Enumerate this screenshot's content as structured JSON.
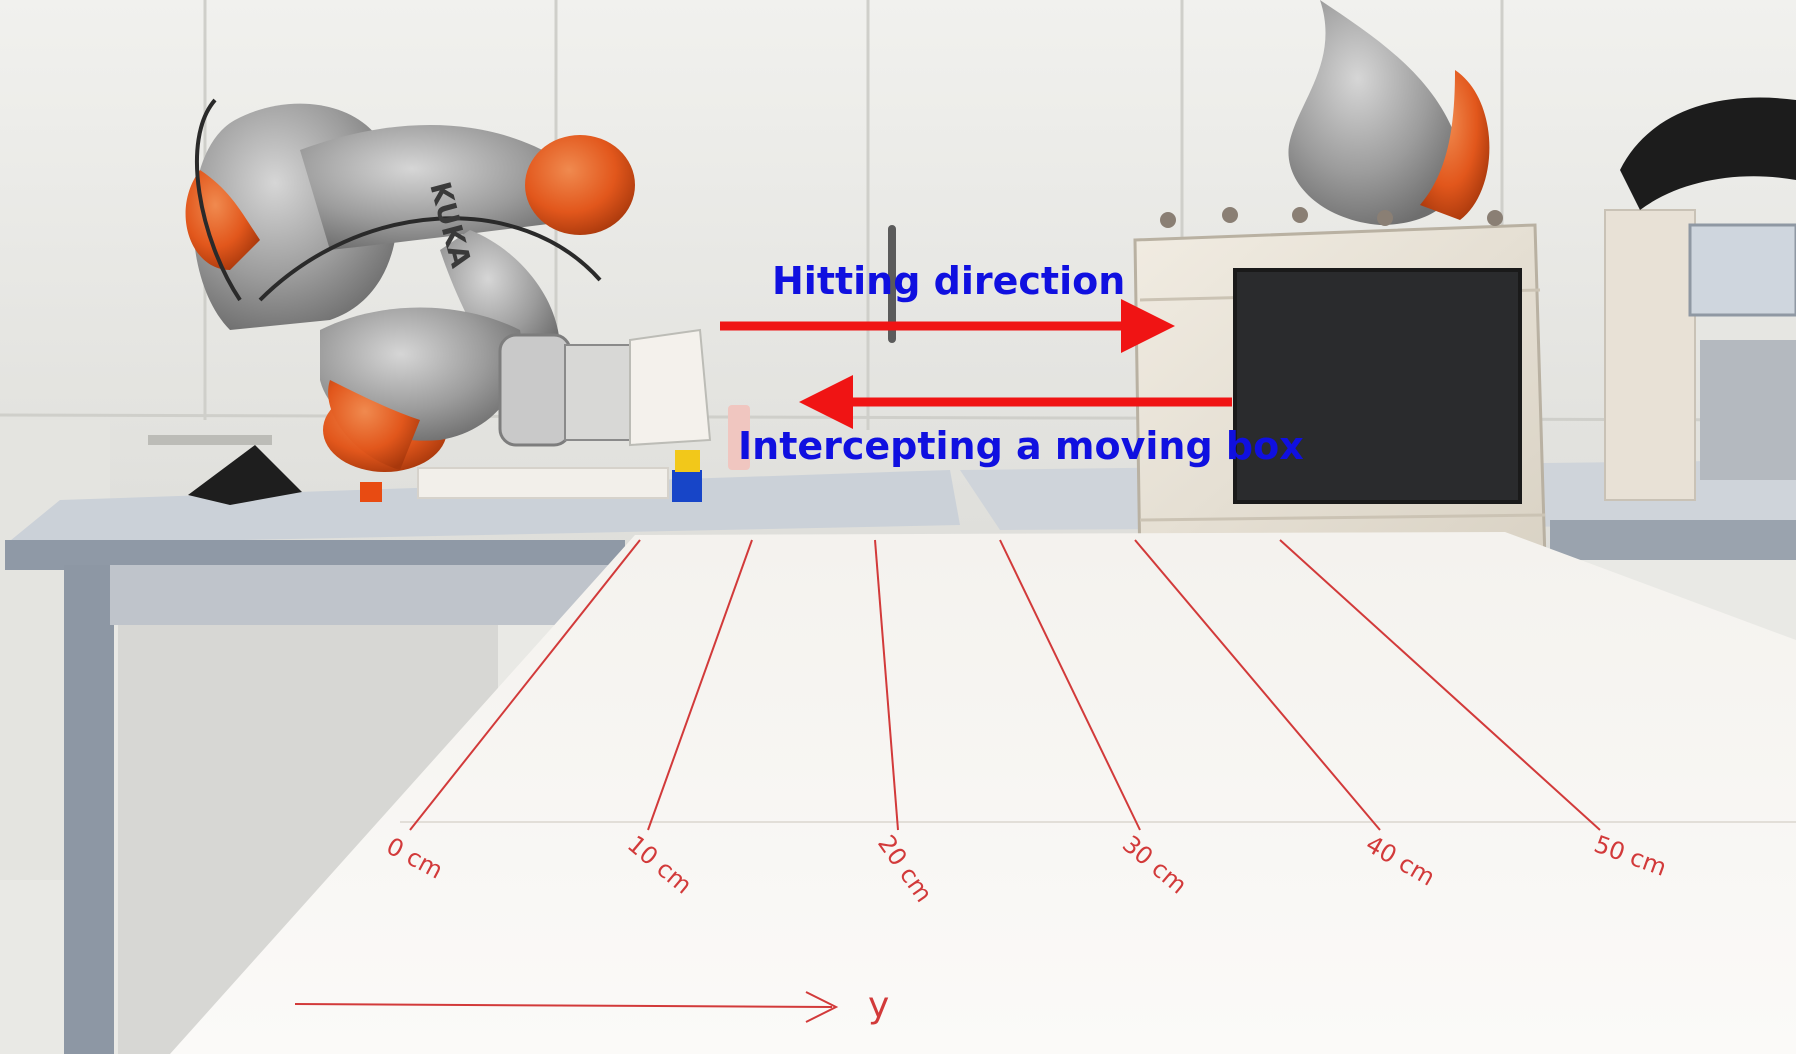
{
  "annotations": {
    "hitting_direction": "Hitting direction",
    "intercepting_box": "Intercepting a moving box",
    "text_color": "#1010e0",
    "arrow_color": "#f01414"
  },
  "robot": {
    "brand_text": "KUKA",
    "body_color": "#9a9a9a",
    "joint_color": "#e2571c"
  },
  "table_markings": {
    "color": "#d23a3a",
    "distances": [
      "0 cm",
      "10 cm",
      "20 cm",
      "30 cm",
      "40 cm",
      "50 cm"
    ],
    "axis_label": "y"
  }
}
